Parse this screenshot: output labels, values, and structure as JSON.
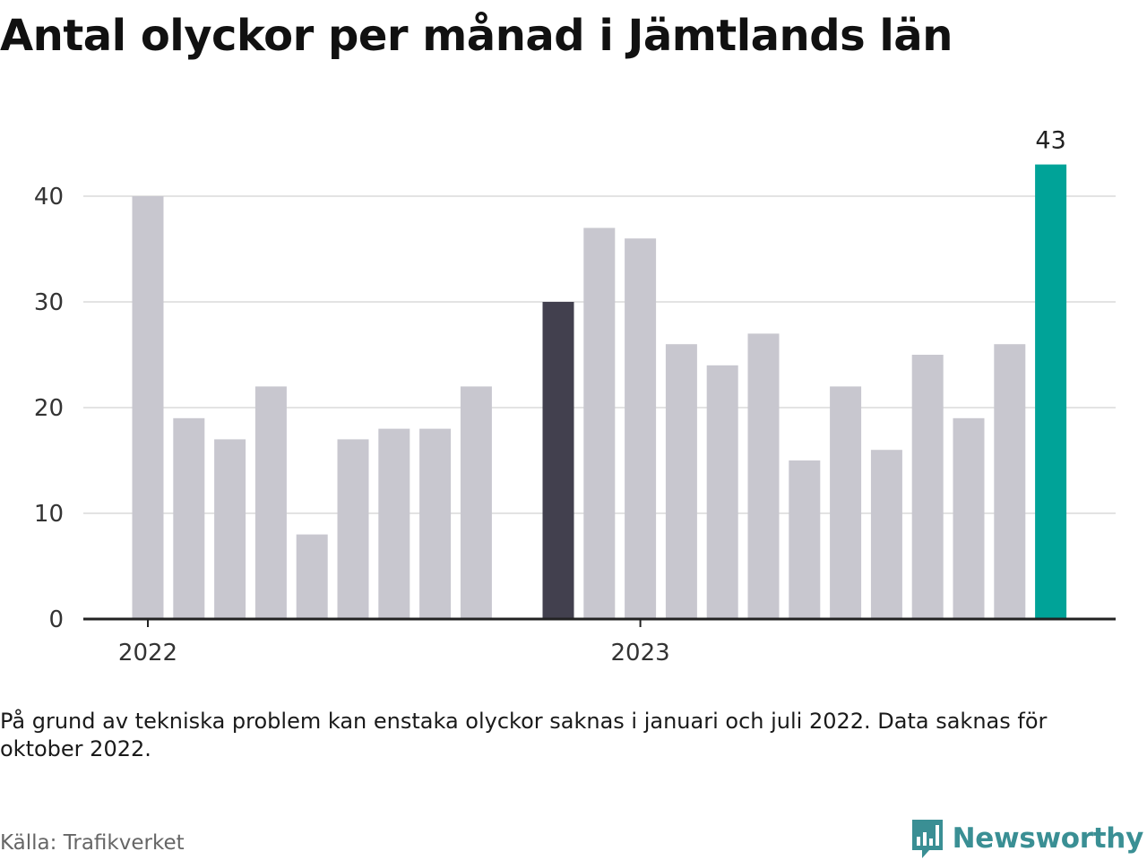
{
  "title": "Antal olyckor per månad i Jämtlands län",
  "note": "På grund av tekniska problem kan enstaka olyckor saknas i januari och juli 2022. Data saknas för oktober 2022.",
  "source": "Källa: Trafikverket",
  "brand": {
    "name": "Newsworthy",
    "icon": "newsworthy-logo-icon",
    "color": "#3a8f94"
  },
  "colors": {
    "bar_default": "#c8c7cf",
    "bar_highlight_dark": "#42404e",
    "bar_highlight_accent": "#00a398",
    "grid": "#e3e3e3",
    "axis": "#222222"
  },
  "chart_data": {
    "type": "bar",
    "title": "Antal olyckor per månad i Jämtlands län",
    "xlabel": "",
    "ylabel": "",
    "ylim": [
      0,
      45
    ],
    "yticks": [
      0,
      10,
      20,
      30,
      40
    ],
    "grid": "horizontal",
    "categories": [
      "2022-01",
      "2022-02",
      "2022-03",
      "2022-04",
      "2022-05",
      "2022-06",
      "2022-07",
      "2022-08",
      "2022-09",
      "2022-10",
      "2022-11",
      "2022-12",
      "2023-01",
      "2023-02",
      "2023-03",
      "2023-04",
      "2023-05",
      "2023-06",
      "2023-07",
      "2023-08",
      "2023-09",
      "2023-10",
      "2023-11",
      "2023-12"
    ],
    "values": [
      40,
      19,
      17,
      22,
      8,
      17,
      18,
      18,
      22,
      null,
      30,
      37,
      36,
      26,
      24,
      27,
      15,
      22,
      16,
      25,
      19,
      26,
      43,
      null
    ],
    "x_tick_labels": [
      {
        "label": "2022",
        "category": "2022-01"
      },
      {
        "label": "2023",
        "category": "2023-01"
      }
    ],
    "highlights": [
      {
        "category": "2022-11",
        "color": "#42404e"
      },
      {
        "category": "2023-11",
        "color": "#00a398"
      }
    ],
    "data_labels": [
      {
        "category": "2023-11",
        "text": "43"
      }
    ]
  }
}
